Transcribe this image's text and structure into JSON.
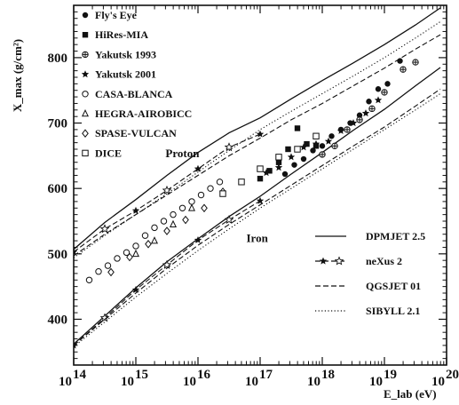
{
  "chart_data": {
    "type": "scatter",
    "title": "",
    "xlabel": "E_lab (eV)",
    "ylabel": "X_max (g/cm²)",
    "x_scale": "log",
    "xlim": [
      100000000000000.0,
      1e+20
    ],
    "ylim": [
      330,
      880
    ],
    "x_tick_values": [
      100000000000000.0,
      1000000000000000.0,
      1e+16,
      1e+17,
      1e+18,
      1e+19,
      1e+20
    ],
    "x_ticks": [
      {
        "base": "10",
        "exp": "14"
      },
      {
        "base": "10",
        "exp": "15"
      },
      {
        "base": "10",
        "exp": "16"
      },
      {
        "base": "10",
        "exp": "17"
      },
      {
        "base": "10",
        "exp": "18"
      },
      {
        "base": "10",
        "exp": "19"
      },
      {
        "base": "10",
        "exp": "20"
      }
    ],
    "y_ticks": [
      400,
      500,
      600,
      700,
      800
    ],
    "grid": false,
    "annotations": [
      {
        "text": "Proton",
        "x": 3000000000000000.0,
        "y": 648
      },
      {
        "text": "Iron",
        "x": 6e+16,
        "y": 518
      }
    ],
    "legend_data": [
      {
        "label": "Fly's Eye",
        "marker": "filled-circle"
      },
      {
        "label": "HiRes-MIA",
        "marker": "filled-square"
      },
      {
        "label": "Yakutsk 1993",
        "marker": "open-cross"
      },
      {
        "label": "Yakutsk 2001",
        "marker": "filled-star"
      },
      {
        "label": "CASA-BLANCA",
        "marker": "open-circle"
      },
      {
        "label": "HEGRA-AIROBICC",
        "marker": "open-triangle"
      },
      {
        "label": "SPASE-VULCAN",
        "marker": "open-diamond"
      },
      {
        "label": "DICE",
        "marker": "open-square"
      }
    ],
    "legend_models": [
      {
        "label": "DPMJET 2.5",
        "style": "solid"
      },
      {
        "label": "neXus 2",
        "style": "dash-star"
      },
      {
        "label": "QGSJET 01",
        "style": "dashed"
      },
      {
        "label": "SIBYLL 2.1",
        "style": "dotted"
      }
    ],
    "series": [
      {
        "name": "DPMJET 2.5",
        "style": "solid",
        "group": "proton",
        "x": [
          14,
          14.5,
          15,
          15.5,
          16,
          16.5,
          17,
          17.5,
          18,
          18.5,
          19,
          19.5,
          19.9
        ],
        "y": [
          507,
          548,
          583,
          620,
          655,
          685,
          708,
          737,
          765,
          792,
          820,
          850,
          876
        ]
      },
      {
        "name": "DPMJET 2.5",
        "style": "solid",
        "group": "iron",
        "x": [
          14,
          14.5,
          15,
          15.5,
          16,
          16.5,
          17,
          17.5,
          18,
          18.5,
          19,
          19.5,
          19.9
        ],
        "y": [
          362,
          405,
          448,
          488,
          523,
          557,
          588,
          622,
          655,
          689,
          721,
          757,
          785
        ]
      },
      {
        "name": "neXus 2",
        "style": "dash-star",
        "group": "proton",
        "x": [
          14,
          14.5,
          15,
          15.5,
          16,
          16.5,
          17
        ],
        "y": [
          503,
          538,
          566,
          597,
          630,
          663,
          683
        ]
      },
      {
        "name": "neXus 2",
        "style": "dash-star",
        "group": "iron",
        "x": [
          14,
          14.5,
          15,
          15.5,
          16,
          16.5,
          17
        ],
        "y": [
          360,
          402,
          445,
          483,
          521,
          552,
          581
        ]
      },
      {
        "name": "QGSJET 01",
        "style": "dashed",
        "group": "proton",
        "x": [
          14,
          14.5,
          15,
          15.5,
          16,
          16.5,
          17,
          17.5,
          18,
          18.5,
          19,
          19.5,
          19.9
        ],
        "y": [
          497,
          530,
          560,
          590,
          620,
          650,
          677,
          705,
          730,
          757,
          784,
          813,
          835
        ]
      },
      {
        "name": "QGSJET 01",
        "style": "dashed",
        "group": "iron",
        "x": [
          14,
          14.5,
          15,
          15.5,
          16,
          16.5,
          17,
          17.5,
          18,
          18.5,
          19,
          19.5,
          19.9
        ],
        "y": [
          360,
          400,
          440,
          478,
          513,
          545,
          575,
          605,
          635,
          665,
          694,
          726,
          752
        ]
      },
      {
        "name": "SIBYLL 2.1",
        "style": "dotted",
        "group": "proton",
        "x": [
          14,
          14.5,
          15,
          15.5,
          16,
          16.5,
          17,
          17.5,
          18,
          18.5,
          19,
          19.5,
          19.9
        ],
        "y": [
          494,
          528,
          560,
          592,
          625,
          658,
          690,
          718,
          745,
          772,
          800,
          830,
          855
        ]
      },
      {
        "name": "SIBYLL 2.1",
        "style": "dotted",
        "group": "iron",
        "x": [
          14,
          14.5,
          15,
          15.5,
          16,
          16.5,
          17,
          17.5,
          18,
          18.5,
          19,
          19.5,
          19.9
        ],
        "y": [
          358,
          396,
          434,
          470,
          505,
          538,
          570,
          600,
          630,
          660,
          690,
          720,
          745
        ]
      },
      {
        "name": "Fly's Eye",
        "marker": "filled-circle",
        "x": [
          17.4,
          17.55,
          17.7,
          17.85,
          18.0,
          18.15,
          18.3,
          18.45,
          18.6,
          18.75,
          18.9,
          19.05,
          19.25
        ],
        "y": [
          622,
          636,
          645,
          658,
          665,
          680,
          690,
          700,
          712,
          733,
          752,
          760,
          795
        ]
      },
      {
        "name": "HiRes-MIA",
        "marker": "filled-square",
        "x": [
          17.0,
          17.15,
          17.3,
          17.45,
          17.6,
          17.75,
          17.9
        ],
        "y": [
          615,
          627,
          640,
          660,
          692,
          668,
          665
        ]
      },
      {
        "name": "Yakutsk 1993",
        "marker": "open-cross",
        "x": [
          18.0,
          18.2,
          18.4,
          18.6,
          18.8,
          19.0,
          19.3,
          19.5
        ],
        "y": [
          652,
          665,
          690,
          705,
          722,
          747,
          782,
          793
        ]
      },
      {
        "name": "Yakutsk 2001",
        "marker": "filled-star",
        "x": [
          17.1,
          17.3,
          17.5,
          17.7,
          17.9,
          18.1,
          18.3,
          18.5,
          18.7,
          18.9
        ],
        "y": [
          624,
          632,
          648,
          663,
          668,
          672,
          688,
          700,
          715,
          735
        ]
      },
      {
        "name": "CASA-BLANCA",
        "marker": "open-circle",
        "x": [
          14.25,
          14.4,
          14.55,
          14.7,
          14.85,
          15.0,
          15.15,
          15.3,
          15.45,
          15.6,
          15.75,
          15.9,
          16.05,
          16.2,
          16.35
        ],
        "y": [
          460,
          473,
          482,
          493,
          502,
          512,
          528,
          540,
          550,
          560,
          570,
          580,
          590,
          600,
          610
        ]
      },
      {
        "name": "HEGRA-AIROBICC",
        "marker": "open-triangle",
        "x": [
          15.0,
          15.3,
          15.6,
          15.9
        ],
        "y": [
          500,
          520,
          545,
          570
        ]
      },
      {
        "name": "SPASE-VULCAN",
        "marker": "open-diamond",
        "x": [
          14.6,
          14.9,
          15.2,
          15.5,
          15.8,
          16.1,
          16.4
        ],
        "y": [
          472,
          495,
          515,
          535,
          552,
          570,
          595
        ]
      },
      {
        "name": "DICE",
        "marker": "open-square",
        "x": [
          16.4,
          16.7,
          17.0,
          17.3,
          17.6,
          17.9
        ],
        "y": [
          592,
          610,
          630,
          648,
          660,
          680
        ]
      }
    ]
  }
}
